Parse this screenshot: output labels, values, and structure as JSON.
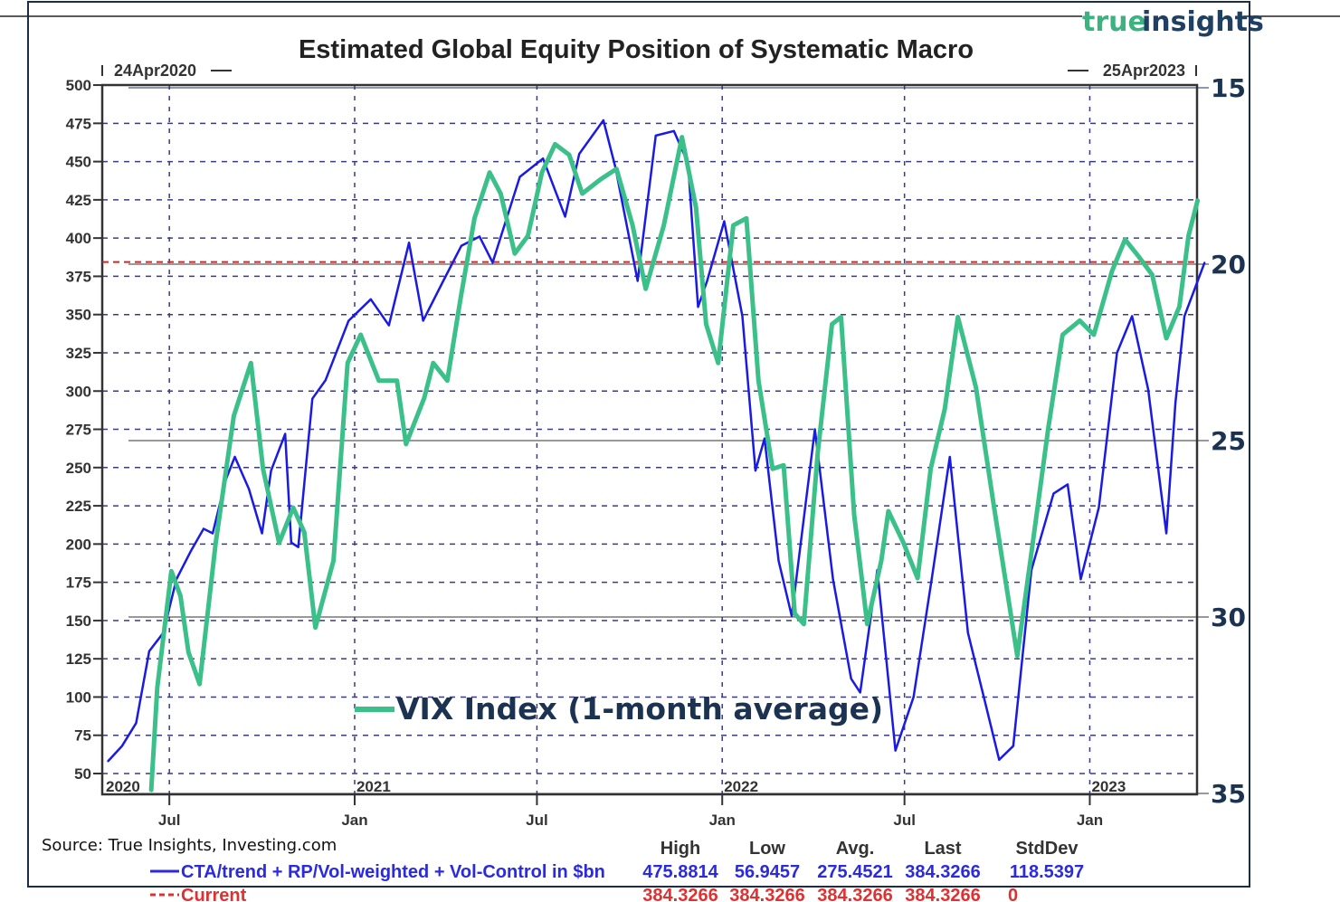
{
  "chart_data": {
    "type": "line",
    "title": "Estimated Global Equity Position of Systematic Macro",
    "start_label": "24Apr2020",
    "end_label": "25Apr2023",
    "x_tick_labels": [
      "Jul",
      "Jan",
      "Jul",
      "Jan",
      "Jul",
      "Jan"
    ],
    "x_tick_dates": [
      "2020-07-01",
      "2021-01-01",
      "2021-07-01",
      "2022-01-01",
      "2022-07-01",
      "2023-01-01"
    ],
    "year_labels": [
      {
        "label": "2020",
        "date": "2020-04-24"
      },
      {
        "label": "2021",
        "date": "2021-01-01"
      },
      {
        "label": "2022",
        "date": "2022-01-01"
      },
      {
        "label": "2023",
        "date": "2023-01-01"
      }
    ],
    "xlim": [
      "2020-04-24",
      "2023-04-25"
    ],
    "ylim": [
      50,
      500
    ],
    "y_ticks": [
      50,
      75,
      100,
      125,
      150,
      175,
      200,
      225,
      250,
      275,
      300,
      325,
      350,
      375,
      400,
      425,
      450,
      475,
      500
    ],
    "y2_ticks": [
      15,
      20,
      25,
      30,
      35
    ],
    "y2_range_top_to_bottom": [
      15,
      35
    ],
    "y2_inverted": true,
    "grid": true,
    "colors": {
      "position": "#1a1ae6",
      "current": "#e02020",
      "vix": "#3cc08a",
      "grid": "#3a3a8a"
    },
    "series": [
      {
        "name": "CTA/trend + RP/Vol-weighted + Vol-Control in $bn",
        "axis": "left",
        "points": [
          [
            "2020-05-01",
            58
          ],
          [
            "2020-05-15",
            68
          ],
          [
            "2020-05-29",
            83
          ],
          [
            "2020-06-11",
            130
          ],
          [
            "2020-06-25",
            142
          ],
          [
            "2020-07-08",
            177
          ],
          [
            "2020-07-22",
            195
          ],
          [
            "2020-08-04",
            210
          ],
          [
            "2020-08-13",
            207
          ],
          [
            "2020-08-26",
            242
          ],
          [
            "2020-09-04",
            257
          ],
          [
            "2020-09-18",
            236
          ],
          [
            "2020-10-01",
            207
          ],
          [
            "2020-10-10",
            248
          ],
          [
            "2020-10-24",
            272
          ],
          [
            "2020-10-30",
            201
          ],
          [
            "2020-11-06",
            198
          ],
          [
            "2020-11-20",
            295
          ],
          [
            "2020-12-03",
            307
          ],
          [
            "2020-12-26",
            346
          ],
          [
            "2021-01-17",
            360
          ],
          [
            "2021-02-04",
            343
          ],
          [
            "2021-02-24",
            397
          ],
          [
            "2021-03-10",
            346
          ],
          [
            "2021-03-30",
            372
          ],
          [
            "2021-04-17",
            395
          ],
          [
            "2021-05-05",
            401
          ],
          [
            "2021-05-18",
            384
          ],
          [
            "2021-06-14",
            440
          ],
          [
            "2021-07-07",
            452
          ],
          [
            "2021-07-29",
            414
          ],
          [
            "2021-08-12",
            455
          ],
          [
            "2021-09-05",
            477
          ],
          [
            "2021-09-17",
            446
          ],
          [
            "2021-10-09",
            372
          ],
          [
            "2021-10-27",
            467
          ],
          [
            "2021-11-14",
            470
          ],
          [
            "2021-11-28",
            449
          ],
          [
            "2021-12-08",
            355
          ],
          [
            "2021-12-17",
            372
          ],
          [
            "2022-01-03",
            411
          ],
          [
            "2022-01-21",
            349
          ],
          [
            "2022-02-03",
            248
          ],
          [
            "2022-02-12",
            269
          ],
          [
            "2022-02-26",
            189
          ],
          [
            "2022-03-11",
            153
          ],
          [
            "2022-04-03",
            275
          ],
          [
            "2022-04-21",
            177
          ],
          [
            "2022-05-09",
            112
          ],
          [
            "2022-05-18",
            103
          ],
          [
            "2022-06-04",
            183
          ],
          [
            "2022-06-22",
            65
          ],
          [
            "2022-07-10",
            100
          ],
          [
            "2022-07-28",
            177
          ],
          [
            "2022-08-15",
            257
          ],
          [
            "2022-09-02",
            142
          ],
          [
            "2022-09-20",
            94
          ],
          [
            "2022-10-03",
            59
          ],
          [
            "2022-10-17",
            68
          ],
          [
            "2022-11-04",
            183
          ],
          [
            "2022-11-26",
            233
          ],
          [
            "2022-12-10",
            239
          ],
          [
            "2022-12-23",
            177
          ],
          [
            "2023-01-10",
            224
          ],
          [
            "2023-01-28",
            325
          ],
          [
            "2023-02-12",
            349
          ],
          [
            "2023-02-28",
            301
          ],
          [
            "2023-03-18",
            207
          ],
          [
            "2023-03-27",
            292
          ],
          [
            "2023-04-05",
            349
          ],
          [
            "2023-04-25",
            384
          ]
        ]
      },
      {
        "name": "Current",
        "axis": "left",
        "value": 384.3266
      },
      {
        "name": "VIX Index (1-month average)",
        "axis": "right",
        "points": [
          [
            "2020-06-13",
            34.9
          ],
          [
            "2020-06-19",
            32.0
          ],
          [
            "2020-07-03",
            28.7
          ],
          [
            "2020-07-12",
            29.4
          ],
          [
            "2020-07-20",
            31.0
          ],
          [
            "2020-07-31",
            31.9
          ],
          [
            "2020-08-16",
            27.9
          ],
          [
            "2020-09-03",
            24.3
          ],
          [
            "2020-09-20",
            22.8
          ],
          [
            "2020-10-02",
            25.8
          ],
          [
            "2020-10-18",
            27.9
          ],
          [
            "2020-11-01",
            26.9
          ],
          [
            "2020-11-12",
            27.6
          ],
          [
            "2020-11-23",
            30.3
          ],
          [
            "2020-12-11",
            28.4
          ],
          [
            "2020-12-25",
            22.8
          ],
          [
            "2021-01-07",
            22.0
          ],
          [
            "2021-01-25",
            23.3
          ],
          [
            "2021-02-12",
            23.3
          ],
          [
            "2021-02-21",
            25.1
          ],
          [
            "2021-03-11",
            23.8
          ],
          [
            "2021-03-20",
            22.8
          ],
          [
            "2021-04-03",
            23.3
          ],
          [
            "2021-04-16",
            21.0
          ],
          [
            "2021-04-30",
            18.7
          ],
          [
            "2021-05-15",
            17.4
          ],
          [
            "2021-05-26",
            18.0
          ],
          [
            "2021-06-09",
            19.7
          ],
          [
            "2021-06-22",
            19.2
          ],
          [
            "2021-07-06",
            17.4
          ],
          [
            "2021-07-19",
            16.6
          ],
          [
            "2021-08-02",
            16.9
          ],
          [
            "2021-08-15",
            18.0
          ],
          [
            "2021-09-02",
            17.6
          ],
          [
            "2021-09-18",
            17.3
          ],
          [
            "2021-10-04",
            18.9
          ],
          [
            "2021-10-17",
            20.7
          ],
          [
            "2021-11-04",
            18.9
          ],
          [
            "2021-11-22",
            16.4
          ],
          [
            "2021-12-06",
            18.4
          ],
          [
            "2021-12-16",
            21.7
          ],
          [
            "2021-12-28",
            22.8
          ],
          [
            "2022-01-12",
            18.9
          ],
          [
            "2022-01-25",
            18.7
          ],
          [
            "2022-02-06",
            23.3
          ],
          [
            "2022-02-20",
            25.8
          ],
          [
            "2022-03-03",
            25.7
          ],
          [
            "2022-03-14",
            29.9
          ],
          [
            "2022-03-23",
            30.2
          ],
          [
            "2022-04-06",
            25.3
          ],
          [
            "2022-04-20",
            21.7
          ],
          [
            "2022-04-29",
            21.5
          ],
          [
            "2022-05-12",
            27.1
          ],
          [
            "2022-05-25",
            30.2
          ],
          [
            "2022-06-08",
            28.4
          ],
          [
            "2022-06-15",
            27.0
          ],
          [
            "2022-06-30",
            27.9
          ],
          [
            "2022-07-14",
            28.9
          ],
          [
            "2022-07-27",
            25.8
          ],
          [
            "2022-08-10",
            24.1
          ],
          [
            "2022-08-23",
            21.5
          ],
          [
            "2022-09-10",
            23.5
          ],
          [
            "2022-09-28",
            26.9
          ],
          [
            "2022-10-21",
            31.1
          ],
          [
            "2022-11-03",
            28.4
          ],
          [
            "2022-11-21",
            24.6
          ],
          [
            "2022-12-05",
            22.0
          ],
          [
            "2022-12-22",
            21.6
          ],
          [
            "2023-01-05",
            22.0
          ],
          [
            "2023-01-23",
            20.2
          ],
          [
            "2023-02-05",
            19.3
          ],
          [
            "2023-02-19",
            19.8
          ],
          [
            "2023-03-04",
            20.3
          ],
          [
            "2023-03-18",
            22.1
          ],
          [
            "2023-03-31",
            21.2
          ],
          [
            "2023-04-09",
            19.2
          ],
          [
            "2023-04-18",
            18.2
          ]
        ]
      }
    ],
    "stats": {
      "headers": [
        "High",
        "Low",
        "Avg.",
        "Last",
        "StdDev"
      ],
      "position_row": [
        "475.8814",
        "56.9457",
        "275.4521",
        "384.3266",
        "118.5397"
      ],
      "current_row": [
        "384.3266",
        "384.3266",
        "384.3266",
        "384.3266",
        "0"
      ]
    }
  },
  "legend": {
    "position_label": "CTA/trend + RP/Vol-weighted + Vol-Control in $bn",
    "current_label": "Current",
    "vix_label": "VIX Index (1-month average)"
  },
  "source": "Source: True Insights, Investing.com",
  "logo": {
    "part1": "true",
    "part2": "insights"
  }
}
